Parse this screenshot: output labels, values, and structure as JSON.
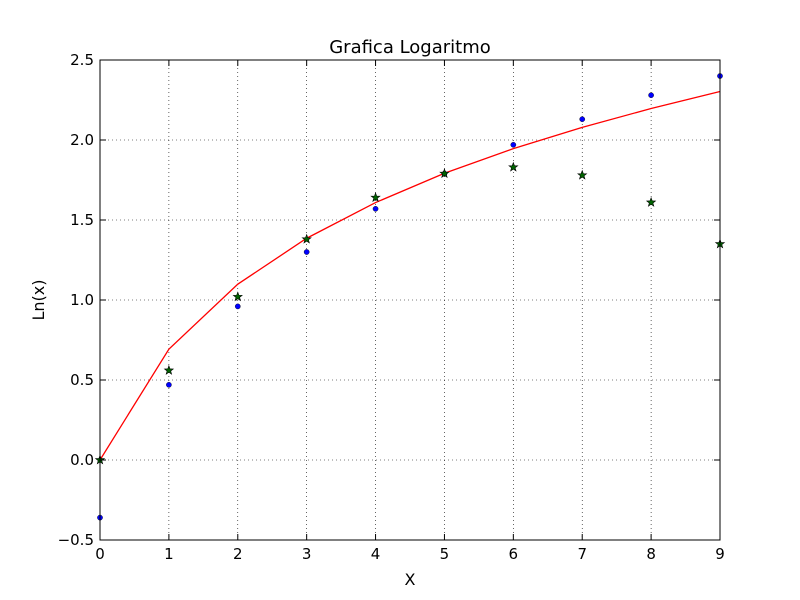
{
  "chart_data": {
    "type": "scatter",
    "title": "Grafica Logaritmo",
    "xlabel": "X",
    "ylabel": "Ln(x)",
    "xlim": [
      0,
      9
    ],
    "ylim": [
      -0.5,
      2.5
    ],
    "x_ticks": [
      "0",
      "1",
      "2",
      "3",
      "4",
      "5",
      "6",
      "7",
      "8",
      "9"
    ],
    "y_ticks": [
      "−0.5",
      "0.0",
      "0.5",
      "1.0",
      "1.5",
      "2.0",
      "2.5"
    ],
    "grid": true,
    "series": [
      {
        "marker": "line",
        "color": "#ff0000",
        "x": [
          0,
          1,
          2,
          3,
          4,
          5,
          6,
          7,
          8,
          9
        ],
        "y": [
          0.0,
          0.693,
          1.099,
          1.386,
          1.609,
          1.792,
          1.946,
          2.079,
          2.197,
          2.303
        ]
      },
      {
        "marker": "circle",
        "color": "#0000ff",
        "x": [
          0,
          1,
          2,
          3,
          4,
          5,
          6,
          7,
          8,
          9
        ],
        "y": [
          -0.36,
          0.47,
          0.96,
          1.3,
          1.57,
          1.79,
          1.97,
          2.13,
          2.28,
          2.4
        ]
      },
      {
        "marker": "star",
        "color": "#006400",
        "x": [
          0,
          1,
          2,
          3,
          4,
          5,
          6,
          7,
          8,
          9
        ],
        "y": [
          0.0,
          0.56,
          1.02,
          1.38,
          1.64,
          1.79,
          1.83,
          1.78,
          1.61,
          1.35
        ]
      }
    ]
  }
}
